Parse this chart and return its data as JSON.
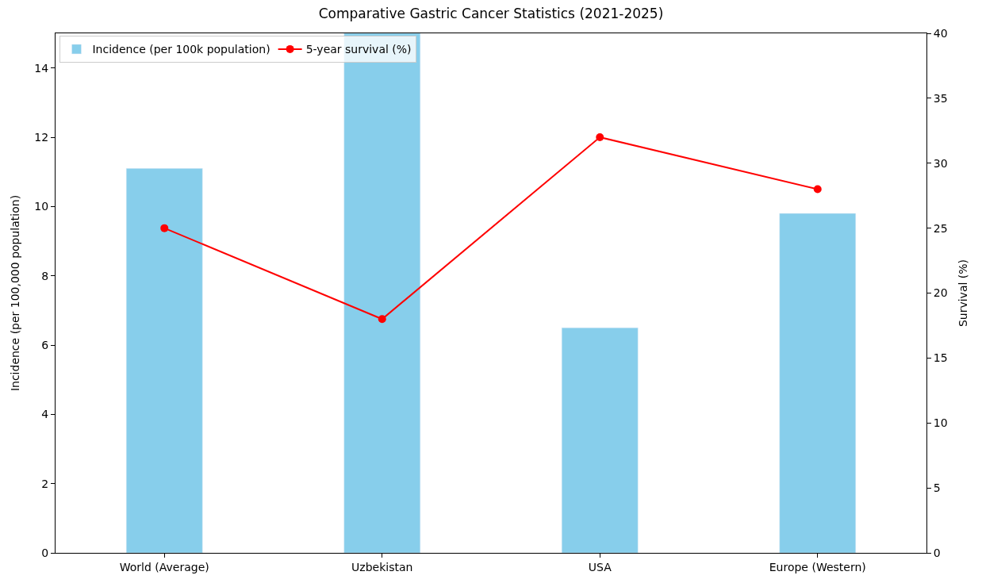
{
  "chart_data": {
    "type": "bar",
    "title": "Comparative Gastric Cancer Statistics (2021-2025)",
    "ylabel": "Incidence (per 100,000 population)",
    "y2label": "Survival (%)",
    "categories": [
      "World (Average)",
      "Uzbekistan",
      "USA",
      "Europe (Western)"
    ],
    "series": [
      {
        "name": "Incidence (per 100k population)",
        "color": "#87ceeb",
        "values": [
          11.1,
          15,
          6.5,
          9.8
        ]
      },
      {
        "name": "5-year survival (%)",
        "type": "line",
        "axis": "y2",
        "color": "#ff0000",
        "marker": "circle",
        "line_style": "solid",
        "values": [
          25,
          18,
          32,
          28
        ]
      }
    ],
    "ylim": [
      0,
      15
    ],
    "yticks": [
      0,
      2,
      4,
      6,
      8,
      10,
      12,
      14
    ],
    "y2lim": [
      0,
      40
    ],
    "y2ticks": [
      0,
      5,
      10,
      15,
      20,
      25,
      30,
      35,
      40
    ],
    "legend": "top left"
  }
}
